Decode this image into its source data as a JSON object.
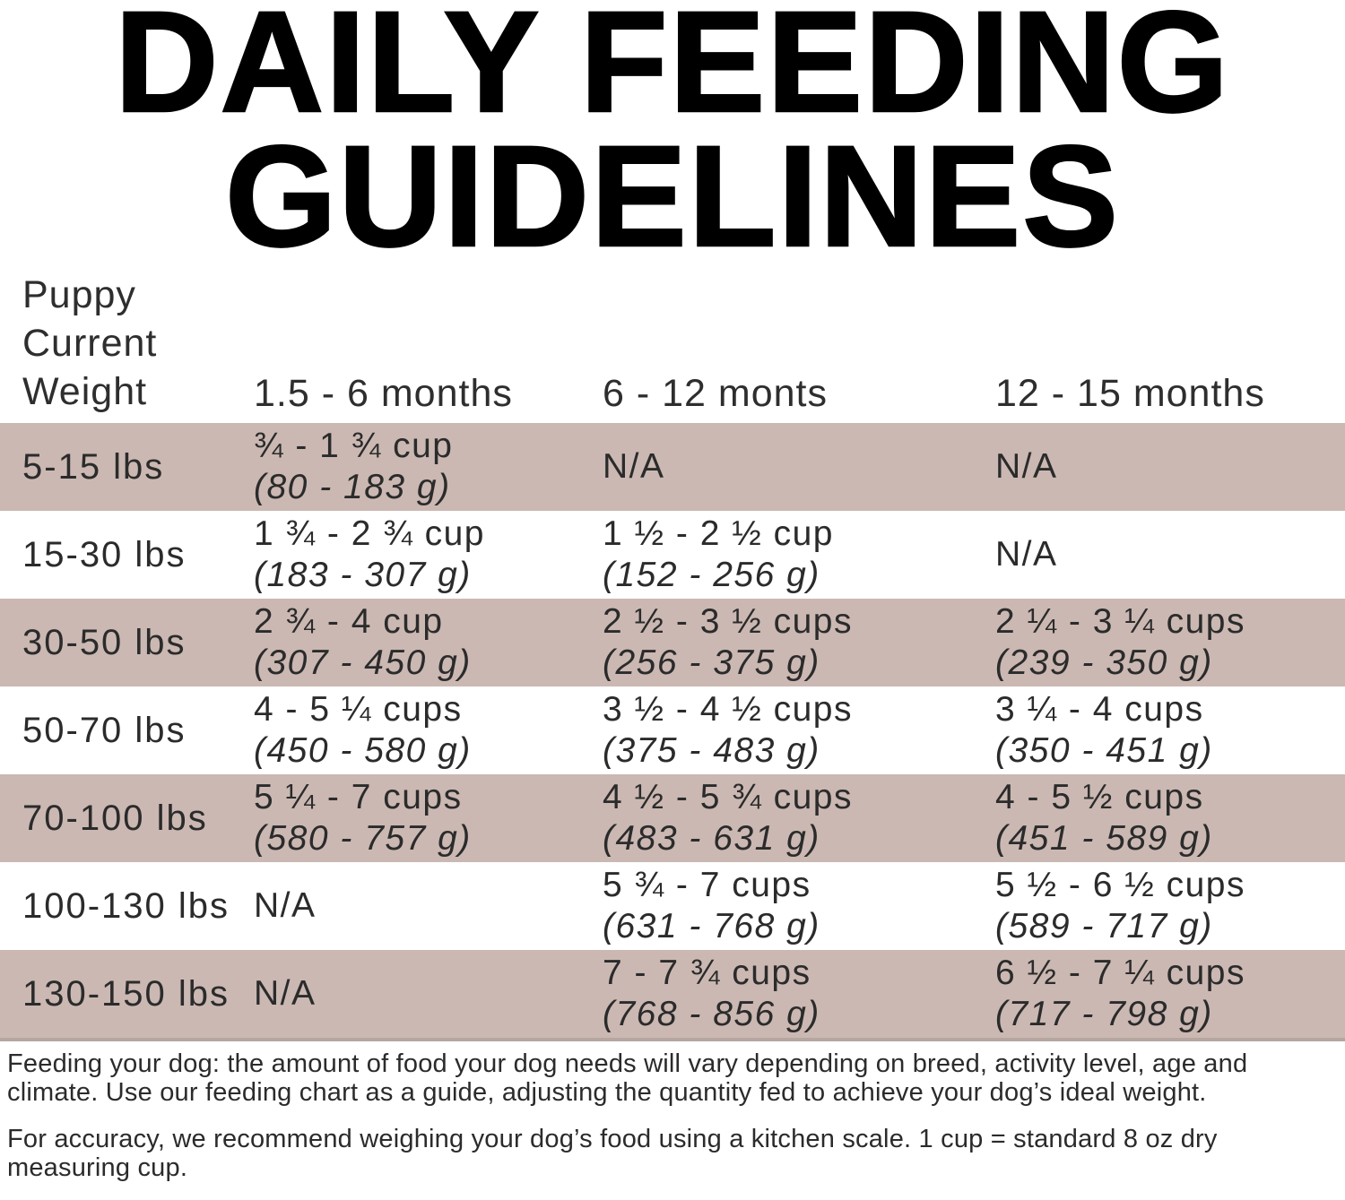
{
  "title": {
    "line1": "DAILY FEEDING",
    "line2": "GUIDELINES"
  },
  "table": {
    "header": {
      "weight_l1": "Puppy",
      "weight_l2": "Current",
      "weight_l3": "Weight",
      "age1": "1.5 - 6 months",
      "age2": "6 - 12 monts",
      "age3": "12 - 15 months"
    },
    "rows": [
      {
        "weight": "5-15 lbs",
        "c1": {
          "l1": "¾ - 1 ¾ cup",
          "l2": "(80 - 183 g)"
        },
        "c2": {
          "l1": "N/A"
        },
        "c3": {
          "l1": "N/A"
        }
      },
      {
        "weight": "15-30 lbs",
        "c1": {
          "l1": "1 ¾ - 2 ¾ cup",
          "l2": "(183 - 307 g)"
        },
        "c2": {
          "l1": "1 ½ - 2 ½ cup",
          "l2": "(152 - 256 g)"
        },
        "c3": {
          "l1": "N/A"
        }
      },
      {
        "weight": "30-50 lbs",
        "c1": {
          "l1": "2 ¾ - 4 cup",
          "l2": "(307 - 450 g)"
        },
        "c2": {
          "l1": "2 ½ - 3 ½ cups",
          "l2": "(256 - 375 g)"
        },
        "c3": {
          "l1": "2 ¼ - 3 ¼ cups",
          "l2": "(239 - 350 g)"
        }
      },
      {
        "weight": "50-70 lbs",
        "c1": {
          "l1": "4 - 5 ¼ cups",
          "l2": "(450 - 580 g)"
        },
        "c2": {
          "l1": "3 ½ - 4 ½ cups",
          "l2": "(375 - 483 g)"
        },
        "c3": {
          "l1": "3 ¼ - 4 cups",
          "l2": "(350 - 451 g)"
        }
      },
      {
        "weight": "70-100 lbs",
        "c1": {
          "l1": "5 ¼ - 7 cups",
          "l2": "(580 - 757 g)"
        },
        "c2": {
          "l1": "4 ½ - 5 ¾ cups",
          "l2": "(483 - 631 g)"
        },
        "c3": {
          "l1": "4 - 5 ½ cups",
          "l2": "(451 - 589 g)"
        }
      },
      {
        "weight": "100-130 lbs",
        "c1": {
          "l1": "N/A"
        },
        "c2": {
          "l1": "5 ¾ - 7 cups",
          "l2": "(631 - 768 g)"
        },
        "c3": {
          "l1": "5 ½ - 6 ½ cups",
          "l2": "(589 - 717 g)"
        }
      },
      {
        "weight": "130-150 lbs",
        "c1": {
          "l1": "N/A"
        },
        "c2": {
          "l1": "7 - 7 ¾ cups",
          "l2": "(768 - 856 g)"
        },
        "c3": {
          "l1": "6 ½ - 7 ¼ cups",
          "l2": "(717 - 798 g)"
        }
      }
    ]
  },
  "footer": {
    "p1l1": "Feeding your dog: the amount of food your dog needs will vary depending on breed, activity level, age and",
    "p1l2": "climate. Use our feeding chart as a guide, adjusting the quantity fed to achieve your dog’s ideal weight.",
    "p2l1": "For accuracy, we recommend weighing your dog’s food using a kitchen scale. 1 cup = standard 8 oz dry",
    "p2l2": "measuring cup."
  },
  "colors": {
    "row_shade": "#cbb8b2",
    "table_border": "#b7a59f",
    "text": "#2b2b2b",
    "title": "#000000",
    "background": "#ffffff"
  }
}
